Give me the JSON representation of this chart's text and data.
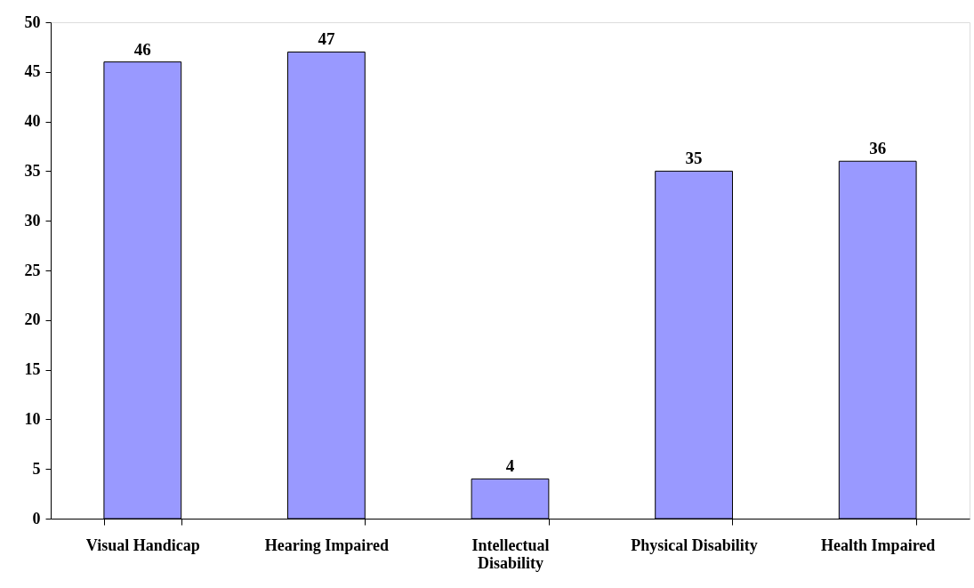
{
  "chart_data": {
    "type": "bar",
    "categories": [
      "Visual Handicap",
      "Hearing Impaired",
      "Intellectual Disability",
      "Physical Disability",
      "Health Impaired"
    ],
    "values": [
      46,
      47,
      4,
      35,
      36
    ],
    "color": "#9999ff",
    "ylim": [
      0,
      50
    ],
    "yticks": [
      0,
      5,
      10,
      15,
      20,
      25,
      30,
      35,
      40,
      45,
      50
    ],
    "grid": false,
    "data_labels": true
  }
}
